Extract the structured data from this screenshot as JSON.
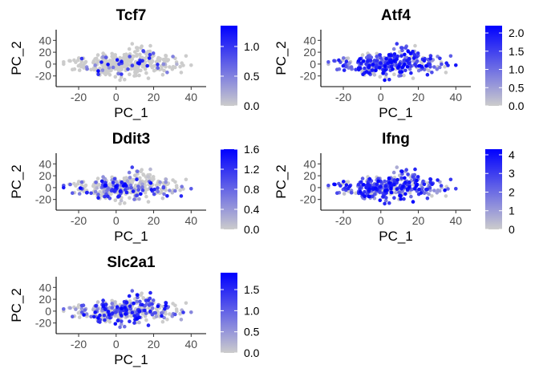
{
  "chart_data": [
    {
      "type": "scatter",
      "title": "Tcf7",
      "xlabel": "PC_1",
      "ylabel": "PC_2",
      "xlim": [
        -32,
        48
      ],
      "ylim": [
        -38,
        58
      ],
      "xticks": [
        "-20",
        "0",
        "20",
        "40"
      ],
      "xtick_values": [
        -20,
        0,
        20,
        40
      ],
      "yticks": [
        "-20",
        "0",
        "20",
        "40"
      ],
      "ytick_values": [
        -20,
        0,
        20,
        40
      ],
      "color_range": [
        0,
        1.35
      ],
      "colorbar_ticks": [
        "0.0",
        "0.5",
        "1.0"
      ],
      "colorbar_tick_values": [
        0,
        0.5,
        1.0
      ],
      "color_low": "#cccccc",
      "color_high": "#0000ff",
      "grid": false,
      "legend": "right",
      "seed": 7,
      "expr_fraction": 0.14,
      "expr_power": 1.0
    },
    {
      "type": "scatter",
      "title": "Atf4",
      "xlabel": "PC_1",
      "ylabel": "PC_2",
      "xlim": [
        -32,
        48
      ],
      "ylim": [
        -38,
        58
      ],
      "xticks": [
        "-20",
        "0",
        "20",
        "40"
      ],
      "xtick_values": [
        -20,
        0,
        20,
        40
      ],
      "yticks": [
        "-20",
        "0",
        "20",
        "40"
      ],
      "ytick_values": [
        -20,
        0,
        20,
        40
      ],
      "color_range": [
        0,
        2.2
      ],
      "colorbar_ticks": [
        "0.0",
        "0.5",
        "1.0",
        "1.5",
        "2.0"
      ],
      "colorbar_tick_values": [
        0,
        0.5,
        1.0,
        1.5,
        2.0
      ],
      "color_low": "#cccccc",
      "color_high": "#0000ff",
      "grid": false,
      "legend": "right",
      "seed": 11,
      "expr_fraction": 0.78,
      "expr_power": 0.7
    },
    {
      "type": "scatter",
      "title": "Ddit3",
      "xlabel": "PC_1",
      "ylabel": "PC_2",
      "xlim": [
        -32,
        48
      ],
      "ylim": [
        -38,
        58
      ],
      "xticks": [
        "-20",
        "0",
        "20",
        "40"
      ],
      "xtick_values": [
        -20,
        0,
        20,
        40
      ],
      "yticks": [
        "-20",
        "0",
        "20",
        "40"
      ],
      "ytick_values": [
        -20,
        0,
        20,
        40
      ],
      "color_range": [
        0,
        1.6
      ],
      "colorbar_ticks": [
        "0.0",
        "0.4",
        "0.8",
        "1.2",
        "1.6"
      ],
      "colorbar_tick_values": [
        0,
        0.4,
        0.8,
        1.2,
        1.6
      ],
      "color_low": "#cccccc",
      "color_high": "#0000ff",
      "grid": false,
      "legend": "right",
      "seed": 23,
      "expr_fraction": 0.4,
      "expr_power": 0.9
    },
    {
      "type": "scatter",
      "title": "Ifng",
      "xlabel": "PC_1",
      "ylabel": "PC_2",
      "xlim": [
        -32,
        48
      ],
      "ylim": [
        -38,
        58
      ],
      "xticks": [
        "-20",
        "0",
        "20",
        "40"
      ],
      "xtick_values": [
        -20,
        0,
        20,
        40
      ],
      "yticks": [
        "-20",
        "0",
        "20",
        "40"
      ],
      "ytick_values": [
        -20,
        0,
        20,
        40
      ],
      "color_range": [
        0,
        4.3
      ],
      "colorbar_ticks": [
        "0",
        "1",
        "2",
        "3",
        "4"
      ],
      "colorbar_tick_values": [
        0,
        1,
        2,
        3,
        4
      ],
      "color_low": "#cccccc",
      "color_high": "#0000ff",
      "grid": false,
      "legend": "right",
      "seed": 31,
      "expr_fraction": 0.82,
      "expr_power": 0.65
    },
    {
      "type": "scatter",
      "title": "Slc2a1",
      "xlabel": "PC_1",
      "ylabel": "PC_2",
      "xlim": [
        -32,
        48
      ],
      "ylim": [
        -38,
        58
      ],
      "xticks": [
        "-20",
        "0",
        "20",
        "40"
      ],
      "xtick_values": [
        -20,
        0,
        20,
        40
      ],
      "yticks": [
        "-20",
        "0",
        "20",
        "40"
      ],
      "ytick_values": [
        -20,
        0,
        20,
        40
      ],
      "color_range": [
        0,
        1.9
      ],
      "colorbar_ticks": [
        "0.0",
        "0.5",
        "1.0",
        "1.5"
      ],
      "colorbar_tick_values": [
        0,
        0.5,
        1.0,
        1.5
      ],
      "color_low": "#cccccc",
      "color_high": "#0000ff",
      "grid": false,
      "legend": "right",
      "seed": 47,
      "expr_fraction": 0.55,
      "expr_power": 0.8
    }
  ]
}
